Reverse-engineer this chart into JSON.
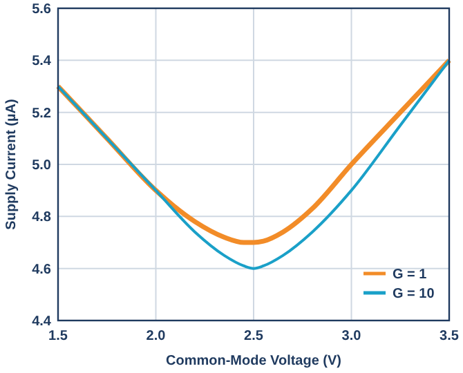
{
  "chart_data": {
    "type": "line",
    "xlabel": "Common-Mode Voltage (V)",
    "ylabel": "Supply Current (µA)",
    "xlim": [
      1.5,
      3.5
    ],
    "xticks": [
      {
        "value": 1.5,
        "label": "1.5"
      },
      {
        "value": 2,
        "label": "2.0"
      },
      {
        "value": 2.5,
        "label": "2.5"
      },
      {
        "value": 3,
        "label": "3.0"
      },
      {
        "value": 3.5,
        "label": "3.5"
      }
    ],
    "ylim": [
      4.4,
      5.6
    ],
    "yticks": [
      {
        "value": 4.4,
        "label": "4.4"
      },
      {
        "value": 4.6,
        "label": "4.6"
      },
      {
        "value": 4.8,
        "label": "4.8"
      },
      {
        "value": 5,
        "label": "5.0"
      },
      {
        "value": 5.2,
        "label": "5.2"
      },
      {
        "value": 5.4,
        "label": "5.4"
      },
      {
        "value": 5.6,
        "label": "5.6"
      }
    ],
    "x": [
      1.5,
      1.75,
      2.0,
      2.2,
      2.35,
      2.45,
      2.5,
      2.55,
      2.65,
      2.8,
      3.0,
      3.25,
      3.5
    ],
    "series": [
      {
        "name": "G = 1",
        "color": "#f28c28",
        "values": [
          5.3,
          5.1,
          4.9,
          4.78,
          4.72,
          4.7,
          4.7,
          4.705,
          4.74,
          4.83,
          5.0,
          5.2,
          5.4
        ]
      },
      {
        "name": "G = 10",
        "color": "#1aa0c8",
        "values": [
          5.3,
          5.1,
          4.9,
          4.74,
          4.65,
          4.61,
          4.6,
          4.61,
          4.65,
          4.74,
          4.9,
          5.15,
          5.4
        ]
      }
    ],
    "grid": true,
    "legend": "bottom right"
  }
}
